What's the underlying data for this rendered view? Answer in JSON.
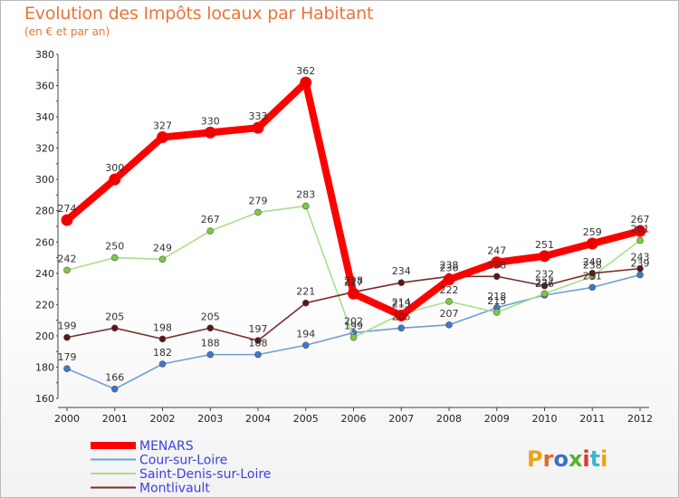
{
  "chart_data": {
    "type": "line",
    "title": "Evolution des Impôts locaux par Habitant",
    "subtitle": "(en € et par an)",
    "x": [
      2000,
      2001,
      2002,
      2003,
      2004,
      2005,
      2006,
      2007,
      2008,
      2009,
      2010,
      2011,
      2012
    ],
    "x_tick_labels": [
      "2000",
      "2001",
      "2002",
      "2003",
      "2004",
      "2005",
      "2006",
      "2007",
      "2008",
      "2009",
      "2010",
      "2011",
      "2012"
    ],
    "ylim": [
      160,
      380
    ],
    "y_ticks": [
      160,
      180,
      200,
      220,
      240,
      260,
      280,
      300,
      320,
      340,
      360,
      380
    ],
    "y_tick_labels": [
      "160",
      "180",
      "200",
      "220",
      "240",
      "260",
      "280",
      "300",
      "320",
      "340",
      "360",
      "380"
    ],
    "grid": false,
    "legend_position": "bottom-left",
    "series": [
      {
        "name": "MENARS",
        "color": "#ff0000",
        "marker_color": "#ee0000",
        "values": [
          274,
          300,
          327,
          330,
          333,
          362,
          227,
          213,
          236,
          247,
          251,
          259,
          267
        ],
        "labels": [
          "274",
          "300",
          "327",
          "330",
          "333",
          "362",
          "227",
          "213",
          "236",
          "247",
          "251",
          "259",
          "267"
        ]
      },
      {
        "name": "Cour-sur-Loire",
        "color": "#6f9ed6",
        "marker_color": "#3a7ac9",
        "values": [
          179,
          166,
          182,
          188,
          188,
          194,
          202,
          205,
          207,
          218,
          226,
          231,
          239
        ],
        "labels": [
          "179",
          "166",
          "182",
          "188",
          "188",
          "194",
          "202",
          "205",
          "207",
          "218",
          "226",
          "231",
          "239"
        ]
      },
      {
        "name": "Saint-Denis-sur-Loire",
        "color": "#a6e08a",
        "marker_color": "#7ccb3f",
        "values": [
          242,
          250,
          249,
          267,
          279,
          283,
          199,
          214,
          222,
          215,
          227,
          238,
          261
        ],
        "labels": [
          "242",
          "250",
          "249",
          "267",
          "279",
          "283",
          "199",
          "214",
          "222",
          "215",
          "227",
          "238",
          "261"
        ]
      },
      {
        "name": "Montlivault",
        "color": "#7a2b2b",
        "marker_color": "#5e1515",
        "values": [
          199,
          205,
          198,
          205,
          197,
          221,
          228,
          234,
          238,
          238,
          232,
          240,
          243
        ],
        "labels": [
          "199",
          "205",
          "198",
          "205",
          "197",
          "221",
          "228",
          "234",
          "238",
          "238",
          "232",
          "240",
          "243"
        ]
      }
    ]
  },
  "logo": {
    "text": "Proxiti"
  }
}
